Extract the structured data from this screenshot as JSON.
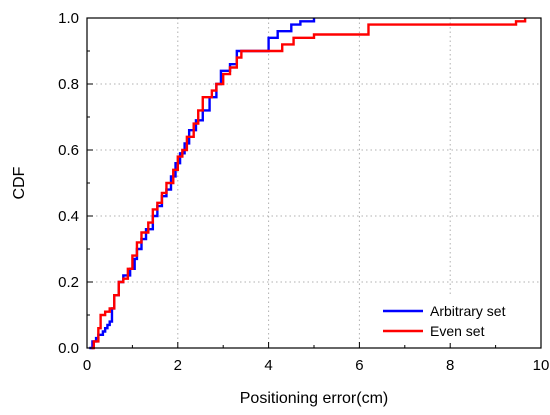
{
  "chart_data": {
    "type": "line",
    "title": "",
    "xlabel": "Positioning error(cm)",
    "ylabel": "CDF",
    "xlim": [
      0,
      10
    ],
    "ylim": [
      0,
      1.0
    ],
    "x_ticks": [
      "0",
      "2",
      "4",
      "6",
      "8",
      "10"
    ],
    "y_ticks": [
      "0.0",
      "0.2",
      "0.4",
      "0.6",
      "0.8",
      "1.0"
    ],
    "grid": "dotted, both axes",
    "legend_position": "bottom-right",
    "step": true,
    "series": [
      {
        "name": "Arbitrary set",
        "color": "#0000ff",
        "points": [
          [
            0.05,
            0.0
          ],
          [
            0.12,
            0.02
          ],
          [
            0.2,
            0.03
          ],
          [
            0.25,
            0.04
          ],
          [
            0.35,
            0.05
          ],
          [
            0.4,
            0.06
          ],
          [
            0.45,
            0.07
          ],
          [
            0.5,
            0.08
          ],
          [
            0.55,
            0.12
          ],
          [
            0.6,
            0.16
          ],
          [
            0.7,
            0.2
          ],
          [
            0.8,
            0.22
          ],
          [
            0.95,
            0.24
          ],
          [
            1.05,
            0.27
          ],
          [
            1.1,
            0.3
          ],
          [
            1.2,
            0.33
          ],
          [
            1.3,
            0.36
          ],
          [
            1.45,
            0.4
          ],
          [
            1.55,
            0.43
          ],
          [
            1.65,
            0.46
          ],
          [
            1.75,
            0.48
          ],
          [
            1.85,
            0.52
          ],
          [
            1.95,
            0.56
          ],
          [
            2.05,
            0.59
          ],
          [
            2.15,
            0.62
          ],
          [
            2.25,
            0.66
          ],
          [
            2.4,
            0.69
          ],
          [
            2.55,
            0.72
          ],
          [
            2.7,
            0.76
          ],
          [
            2.85,
            0.8
          ],
          [
            2.95,
            0.84
          ],
          [
            3.15,
            0.86
          ],
          [
            3.3,
            0.9
          ],
          [
            3.5,
            0.9
          ],
          [
            3.9,
            0.9
          ],
          [
            4.0,
            0.94
          ],
          [
            4.2,
            0.96
          ],
          [
            4.5,
            0.98
          ],
          [
            4.7,
            0.99
          ],
          [
            5.0,
            1.0
          ]
        ]
      },
      {
        "name": "Even set",
        "color": "#ff0000",
        "points": [
          [
            0.1,
            0.0
          ],
          [
            0.15,
            0.02
          ],
          [
            0.25,
            0.06
          ],
          [
            0.3,
            0.1
          ],
          [
            0.4,
            0.11
          ],
          [
            0.5,
            0.12
          ],
          [
            0.6,
            0.16
          ],
          [
            0.7,
            0.2
          ],
          [
            0.8,
            0.21
          ],
          [
            0.9,
            0.24
          ],
          [
            1.0,
            0.28
          ],
          [
            1.1,
            0.32
          ],
          [
            1.2,
            0.35
          ],
          [
            1.35,
            0.38
          ],
          [
            1.45,
            0.42
          ],
          [
            1.55,
            0.44
          ],
          [
            1.65,
            0.47
          ],
          [
            1.75,
            0.5
          ],
          [
            1.9,
            0.54
          ],
          [
            2.0,
            0.58
          ],
          [
            2.1,
            0.6
          ],
          [
            2.2,
            0.64
          ],
          [
            2.35,
            0.68
          ],
          [
            2.45,
            0.72
          ],
          [
            2.55,
            0.76
          ],
          [
            2.75,
            0.78
          ],
          [
            2.85,
            0.8
          ],
          [
            3.0,
            0.83
          ],
          [
            3.15,
            0.85
          ],
          [
            3.3,
            0.88
          ],
          [
            3.4,
            0.9
          ],
          [
            3.6,
            0.9
          ],
          [
            4.1,
            0.9
          ],
          [
            4.3,
            0.92
          ],
          [
            4.55,
            0.94
          ],
          [
            5.0,
            0.95
          ],
          [
            6.2,
            0.98
          ],
          [
            9.45,
            0.99
          ],
          [
            9.65,
            1.0
          ]
        ]
      }
    ]
  }
}
